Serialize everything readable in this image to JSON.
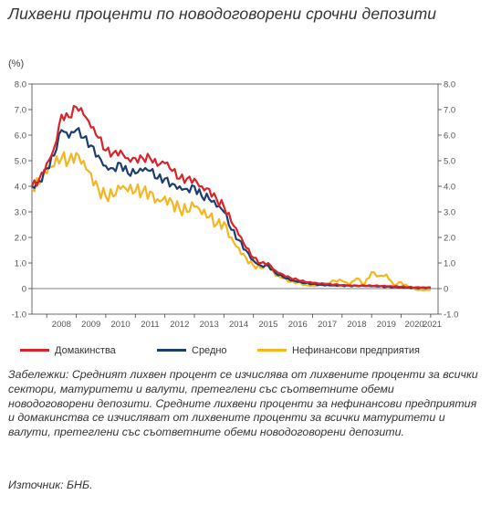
{
  "header": {
    "title": "Лихвени проценти по новодоговорени срочни депозити",
    "unit": "(%)"
  },
  "chart_data": {
    "type": "line",
    "title": "Лихвени проценти по новодоговорени срочни депозити",
    "ylabel": "(%)",
    "ylim": [
      -1.0,
      8.0
    ],
    "yticks": [
      "-1.0",
      "0",
      "1.0",
      "2.0",
      "3.0",
      "4.0",
      "5.0",
      "6.0",
      "7.0",
      "8.0"
    ],
    "xticks": [
      "2008",
      "2009",
      "2010",
      "2011",
      "2012",
      "2013",
      "2014",
      "2015",
      "2016",
      "2017",
      "2018",
      "2019",
      "2020",
      "2021"
    ],
    "grid": false,
    "legend_placement": "bottom",
    "x": [
      "2007.5",
      "2007.75",
      "2008.0",
      "2008.25",
      "2008.5",
      "2008.75",
      "2009.0",
      "2009.25",
      "2009.5",
      "2009.75",
      "2010.0",
      "2010.25",
      "2010.5",
      "2010.75",
      "2011.0",
      "2011.25",
      "2011.5",
      "2011.75",
      "2012.0",
      "2012.25",
      "2012.5",
      "2012.75",
      "2013.0",
      "2013.25",
      "2013.5",
      "2013.75",
      "2014.0",
      "2014.25",
      "2014.5",
      "2014.75",
      "2015.0",
      "2015.25",
      "2015.5",
      "2015.75",
      "2016.0",
      "2016.25",
      "2016.5",
      "2016.75",
      "2017.0",
      "2017.25",
      "2017.5",
      "2017.75",
      "2018.0",
      "2018.25",
      "2018.5",
      "2018.75",
      "2019.0",
      "2019.25",
      "2019.5",
      "2019.75",
      "2020.0",
      "2020.25",
      "2020.5",
      "2020.75",
      "2021.0"
    ],
    "series": [
      {
        "name": "Домакинства",
        "color": "#d9242a",
        "values": [
          4.0,
          4.3,
          4.9,
          5.5,
          6.8,
          6.7,
          7.1,
          6.8,
          6.3,
          5.9,
          5.4,
          5.3,
          5.4,
          5.1,
          5.1,
          5.1,
          5.1,
          4.8,
          4.9,
          4.6,
          4.3,
          4.3,
          4.3,
          4.0,
          3.9,
          3.5,
          3.2,
          2.6,
          2.1,
          1.6,
          1.2,
          1.0,
          1.0,
          0.7,
          0.55,
          0.42,
          0.34,
          0.26,
          0.22,
          0.19,
          0.17,
          0.16,
          0.14,
          0.13,
          0.12,
          0.12,
          0.11,
          0.1,
          0.09,
          0.08,
          0.07,
          0.06,
          0.05,
          0.05,
          0.05
        ]
      },
      {
        "name": "Средно",
        "color": "#1c3d6e",
        "values": [
          4.0,
          4.2,
          4.7,
          5.2,
          6.2,
          5.9,
          6.2,
          5.9,
          5.6,
          5.2,
          4.8,
          4.7,
          4.9,
          4.5,
          4.5,
          4.6,
          4.6,
          4.3,
          4.3,
          4.1,
          4.0,
          3.9,
          4.0,
          3.6,
          3.5,
          3.2,
          3.0,
          2.3,
          1.9,
          1.5,
          1.1,
          0.9,
          0.9,
          0.6,
          0.45,
          0.32,
          0.26,
          0.21,
          0.18,
          0.15,
          0.14,
          0.13,
          0.12,
          0.11,
          0.1,
          0.1,
          0.09,
          0.08,
          0.07,
          0.06,
          0.05,
          0.04,
          0.03,
          0.03,
          0.03
        ]
      },
      {
        "name": "Нефинансови предприятия",
        "color": "#f5b622",
        "values": [
          3.9,
          4.1,
          4.5,
          4.8,
          5.1,
          5.0,
          5.3,
          5.0,
          4.5,
          3.9,
          3.6,
          3.6,
          3.9,
          3.8,
          3.8,
          3.8,
          3.8,
          3.5,
          3.6,
          3.4,
          3.1,
          3.0,
          3.2,
          2.9,
          2.8,
          2.5,
          2.6,
          2.0,
          1.6,
          1.2,
          0.9,
          0.8,
          0.9,
          0.5,
          0.4,
          0.26,
          0.25,
          0.15,
          0.12,
          0.15,
          0.2,
          0.3,
          0.3,
          0.15,
          0.4,
          0.15,
          0.65,
          0.5,
          0.55,
          0.15,
          0.25,
          0.05,
          -0.05,
          -0.08,
          -0.05
        ]
      }
    ]
  },
  "legend": {
    "items": [
      {
        "label": "Домакинства",
        "color": "#d9242a"
      },
      {
        "label": "Средно",
        "color": "#1c3d6e"
      },
      {
        "label": "Нефинансови предприятия",
        "color": "#f5b622"
      }
    ]
  },
  "notes": {
    "text": "Забележки: Средният лихвен процент се изчислява от лихвените проценти за всички сектори, матуритети и валути, претеглени със съответните обеми новодоговорени депозити. Средните лихвени проценти за нефинансови предприятия и домакинства се изчисляват от лихвените проценти за всички матуритети и валути, претеглени със съответните обеми новодоговорени депозити."
  },
  "source": {
    "text": "Източник: БНБ."
  }
}
